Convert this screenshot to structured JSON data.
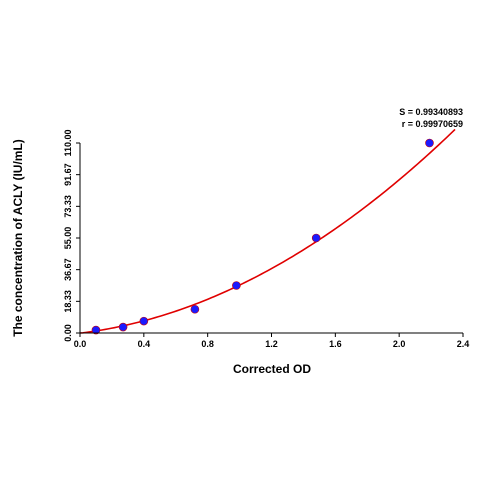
{
  "chart_data": {
    "type": "scatter",
    "xlabel": "Corrected OD",
    "ylabel": "The concentration of ACLY (IU/mL)",
    "xlim": [
      0.0,
      2.4
    ],
    "ylim": [
      0.0,
      110.0
    ],
    "xticks": [
      "0.0",
      "0.4",
      "0.8",
      "1.2",
      "1.6",
      "2.0",
      "2.4"
    ],
    "yticks": [
      "0.00",
      "18.33",
      "36.67",
      "55.00",
      "73.33",
      "91.67",
      "110.00"
    ],
    "points": {
      "x": [
        0.1,
        0.27,
        0.4,
        0.72,
        0.98,
        1.48,
        2.19
      ],
      "y": [
        1.72,
        3.44,
        6.88,
        13.75,
        27.5,
        55.0,
        110.0
      ]
    },
    "fit_curve": {
      "type": "quadratic",
      "coefficients": {
        "a": 16.55,
        "b": 11.3,
        "c": -0.11
      },
      "x_range": [
        0.0,
        2.35
      ]
    },
    "stats": {
      "S": "S = 0.99340893",
      "r": "r = 0.99970659"
    },
    "colors": {
      "curve": "#e00000",
      "points": "#1a1aff",
      "axis": "#000000"
    },
    "grid": false
  }
}
